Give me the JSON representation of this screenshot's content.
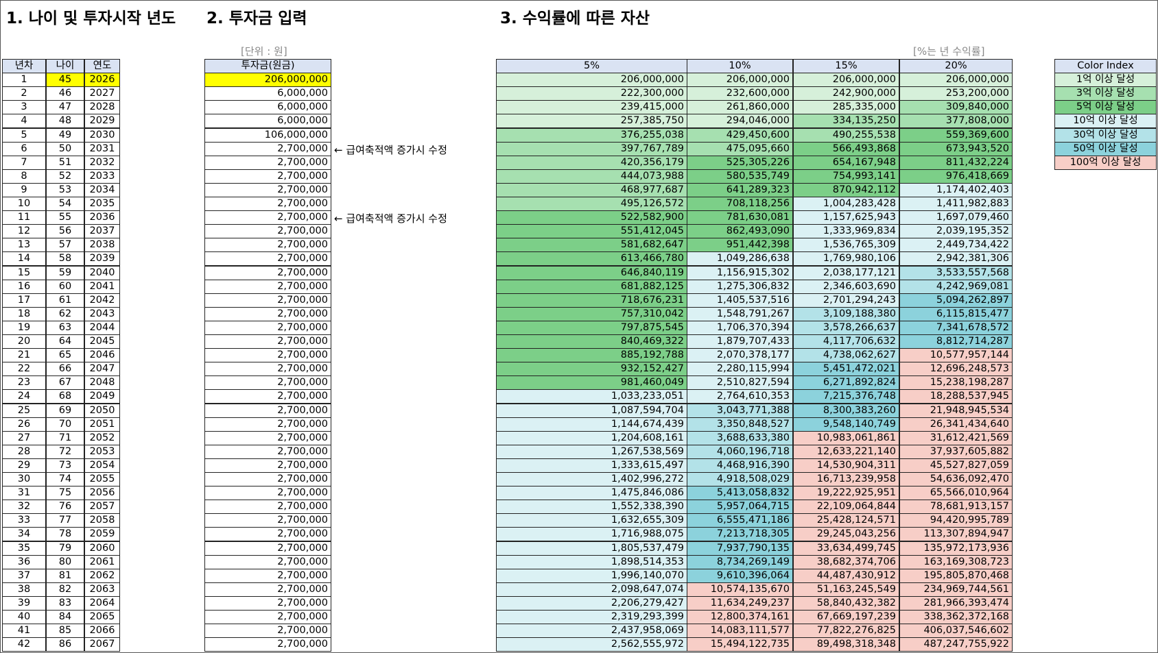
{
  "titles": [
    "1. 나이 및 투자시작 년도",
    "2. 투자금 입력",
    "3. 수익률에 따른 자산"
  ],
  "unit_note": "[단위 : 원]",
  "rate_note": "[%는 년 수익률]",
  "header_color": "#dae3f3",
  "highlight_color": "#ffff00",
  "age_table": {
    "columns": [
      {
        "header": "년차",
        "values": [
          1,
          2,
          3,
          4,
          5,
          6,
          7,
          8,
          9,
          10,
          11,
          12,
          13,
          14,
          15,
          16,
          17,
          18,
          19,
          20,
          21,
          22,
          23,
          24,
          25,
          26,
          27,
          28,
          29,
          30,
          31,
          32,
          33,
          34,
          35,
          36,
          37,
          38,
          39,
          40,
          41,
          42
        ]
      },
      {
        "header": "나이",
        "values": [
          45,
          46,
          47,
          48,
          49,
          50,
          51,
          52,
          53,
          54,
          55,
          56,
          57,
          58,
          59,
          60,
          61,
          62,
          63,
          64,
          65,
          66,
          67,
          68,
          69,
          70,
          71,
          72,
          73,
          74,
          75,
          76,
          77,
          78,
          79,
          80,
          81,
          82,
          83,
          84,
          85,
          86
        ]
      },
      {
        "header": "연도",
        "values": [
          2026,
          2027,
          2028,
          2029,
          2030,
          2031,
          2032,
          2033,
          2034,
          2035,
          2036,
          2037,
          2038,
          2039,
          2040,
          2041,
          2042,
          2043,
          2044,
          2045,
          2046,
          2047,
          2048,
          2049,
          2050,
          2051,
          2052,
          2053,
          2054,
          2055,
          2056,
          2057,
          2058,
          2059,
          2060,
          2061,
          2062,
          2063,
          2064,
          2065,
          2066,
          2067
        ]
      }
    ]
  },
  "investment": {
    "header": "투자금(원금)",
    "rows": [
      "206,000,000",
      "6,000,000",
      "6,000,000",
      "6,000,000",
      "106,000,000",
      {
        "value": "2,700,000",
        "note": "← 급여축적액 증가시 수정"
      },
      "2,700,000",
      "2,700,000",
      "2,700,000",
      "2,700,000",
      {
        "value": "2,700,000",
        "note": "← 급여축적액 증가시 수정"
      },
      "2,700,000",
      "2,700,000",
      "2,700,000",
      "2,700,000",
      "2,700,000",
      "2,700,000",
      "2,700,000",
      "2,700,000",
      "2,700,000",
      "2,700,000",
      "2,700,000",
      "2,700,000",
      "2,700,000",
      "2,700,000",
      "2,700,000",
      "2,700,000",
      "2,700,000",
      "2,700,000",
      "2,700,000",
      "2,700,000",
      "2,700,000",
      "2,700,000",
      "2,700,000",
      "2,700,000",
      "2,700,000",
      "2,700,000",
      "2,700,000",
      "2,700,000",
      "2,700,000",
      "2,700,000",
      "2,700,000"
    ]
  },
  "returns": {
    "columns": [
      {
        "header": "5%",
        "values": [
          "206,000,000",
          "222,300,000",
          "239,415,000",
          "257,385,750",
          "376,255,038",
          "397,767,789",
          "420,356,179",
          "444,073,988",
          "468,977,687",
          "495,126,572",
          "522,582,900",
          "551,412,045",
          "581,682,647",
          "613,466,780",
          "646,840,119",
          "681,882,125",
          "718,676,231",
          "757,310,042",
          "797,875,545",
          "840,469,322",
          "885,192,788",
          "932,152,427",
          "981,460,049",
          "1,033,233,051",
          "1,087,594,704",
          "1,144,674,439",
          "1,204,608,161",
          "1,267,538,569",
          "1,333,615,497",
          "1,402,996,272",
          "1,475,846,086",
          "1,552,338,390",
          "1,632,655,309",
          "1,716,988,075",
          "1,805,537,479",
          "1,898,514,353",
          "1,996,140,070",
          "2,098,647,074",
          "2,206,279,427",
          "2,319,293,399",
          "2,437,958,069",
          "2,562,555,972"
        ]
      },
      {
        "header": "10%",
        "values": [
          "206,000,000",
          "232,600,000",
          "261,860,000",
          "294,046,000",
          "429,450,600",
          "475,095,660",
          "525,305,226",
          "580,535,749",
          "641,289,323",
          "708,118,256",
          "781,630,081",
          "862,493,090",
          "951,442,398",
          "1,049,286,638",
          "1,156,915,302",
          "1,275,306,832",
          "1,405,537,516",
          "1,548,791,267",
          "1,706,370,394",
          "1,879,707,433",
          "2,070,378,177",
          "2,280,115,994",
          "2,510,827,594",
          "2,764,610,353",
          "3,043,771,388",
          "3,350,848,527",
          "3,688,633,380",
          "4,060,196,718",
          "4,468,916,390",
          "4,918,508,029",
          "5,413,058,832",
          "5,957,064,715",
          "6,555,471,186",
          "7,213,718,305",
          "7,937,790,135",
          "8,734,269,149",
          "9,610,396,064",
          "10,574,135,670",
          "11,634,249,237",
          "12,800,374,161",
          "14,083,111,577",
          "15,494,122,735"
        ]
      },
      {
        "header": "15%",
        "values": [
          "206,000,000",
          "242,900,000",
          "285,335,000",
          "334,135,250",
          "490,255,538",
          "566,493,868",
          "654,167,948",
          "754,993,141",
          "870,942,112",
          "1,004,283,428",
          "1,157,625,943",
          "1,333,969,834",
          "1,536,765,309",
          "1,769,980,106",
          "2,038,177,121",
          "2,346,603,690",
          "2,701,294,243",
          "3,109,188,380",
          "3,578,266,637",
          "4,117,706,632",
          "4,738,062,627",
          "5,451,472,021",
          "6,271,892,824",
          "7,215,376,748",
          "8,300,383,260",
          "9,548,140,749",
          "10,983,061,861",
          "12,633,221,140",
          "14,530,904,311",
          "16,713,239,958",
          "19,222,925,951",
          "22,109,064,844",
          "25,428,124,571",
          "29,245,043,256",
          "33,634,499,745",
          "38,682,374,706",
          "44,487,430,912",
          "51,163,245,549",
          "58,840,432,382",
          "67,669,197,239",
          "77,822,276,825",
          "89,498,318,348"
        ]
      },
      {
        "header": "20%",
        "values": [
          "206,000,000",
          "253,200,000",
          "309,840,000",
          "377,808,000",
          "559,369,600",
          "673,943,520",
          "811,432,224",
          "976,418,669",
          "1,174,402,403",
          "1,411,982,883",
          "1,697,079,460",
          "2,039,195,352",
          "2,449,734,422",
          "2,942,381,306",
          "3,533,557,568",
          "4,242,969,081",
          "5,094,262,897",
          "6,115,815,477",
          "7,341,678,572",
          "8,812,714,287",
          "10,577,957,144",
          "12,696,248,573",
          "15,238,198,287",
          "18,288,537,945",
          "21,948,945,534",
          "26,341,434,640",
          "31,612,421,569",
          "37,937,605,882",
          "45,527,827,059",
          "54,636,092,470",
          "65,566,010,964",
          "78,681,913,157",
          "94,420,995,789",
          "113,307,894,947",
          "135,972,173,936",
          "163,169,308,723",
          "195,805,870,468",
          "234,969,744,561",
          "281,966,393,474",
          "338,362,372,168",
          "406,037,546,602",
          "487,247,755,922"
        ]
      }
    ]
  },
  "color_index": {
    "title": "Color Index",
    "items": [
      {
        "label": "1억 이상 달성",
        "color": "#d6f0da"
      },
      {
        "label": "3억 이상 달성",
        "color": "#a6e0b0"
      },
      {
        "label": "5억 이상 달성",
        "color": "#7ccf88"
      },
      {
        "label": "10억 이상 달성",
        "color": "#dbf1f4"
      },
      {
        "label": "30억 이상 달성",
        "color": "#b3e2e8"
      },
      {
        "label": "50억 이상 달성",
        "color": "#8cd2dc"
      },
      {
        "label": "100억 이상 달성",
        "color": "#f7cec7"
      }
    ]
  }
}
